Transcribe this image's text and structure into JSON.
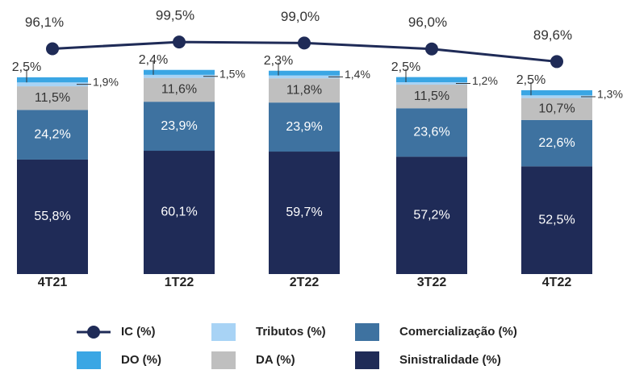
{
  "chart_data": {
    "type": "bar",
    "stacked": true,
    "categories": [
      "4T21",
      "1T22",
      "2T22",
      "3T22",
      "4T22"
    ],
    "ylim": [
      0,
      110
    ],
    "y2lim": [
      80,
      102
    ],
    "series": [
      {
        "name": "Sinistralidade (%)",
        "color": "#1f2b57",
        "values": [
          55.8,
          60.1,
          59.7,
          57.2,
          52.5
        ],
        "value_labels": [
          "55,8%",
          "60,1%",
          "59,7%",
          "57,2%",
          "52,5%"
        ]
      },
      {
        "name": "Comercialização (%)",
        "color": "#3e72a0",
        "values": [
          24.2,
          23.9,
          23.9,
          23.6,
          22.6
        ],
        "value_labels": [
          "24,2%",
          "23,9%",
          "23,9%",
          "23,6%",
          "22,6%"
        ]
      },
      {
        "name": "DA (%)",
        "color": "#bfbfbf",
        "values": [
          11.5,
          11.6,
          11.8,
          11.5,
          10.7
        ],
        "value_labels": [
          "11,5%",
          "11,6%",
          "11,8%",
          "11,5%",
          "10,7%"
        ]
      },
      {
        "name": "Tributos (%)",
        "color": "#a8d3f5",
        "values": [
          1.9,
          1.5,
          1.4,
          1.2,
          1.3
        ],
        "value_labels": [
          "1,9%",
          "1,5%",
          "1,4%",
          "1,2%",
          "1,3%"
        ]
      },
      {
        "name": "DO (%)",
        "color": "#3aa6e4",
        "values": [
          2.5,
          2.4,
          2.3,
          2.5,
          2.5
        ],
        "value_labels": [
          "2,5%",
          "2,4%",
          "2,3%",
          "2,5%",
          "2,5%"
        ]
      },
      {
        "name": "IC (%)",
        "type": "line",
        "axis": "y2",
        "color": "#1f2b57",
        "values": [
          96.1,
          99.5,
          99.0,
          96.0,
          89.6
        ],
        "value_labels": [
          "96,1%",
          "99,5%",
          "99,0%",
          "96,0%",
          "89,6%"
        ]
      }
    ]
  }
}
